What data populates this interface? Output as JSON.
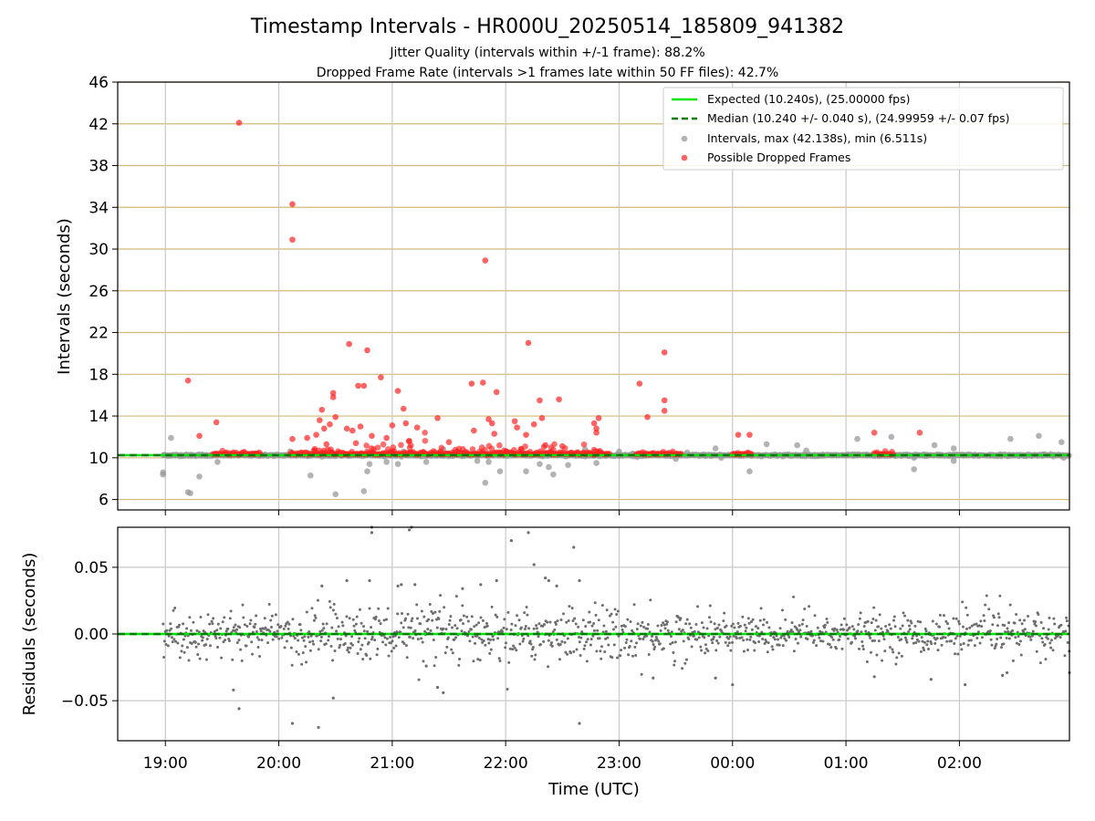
{
  "title": "Timestamp Intervals - HR000U_20250514_185809_941382",
  "subtitle_1": "Jitter Quality (intervals within +/-1 frame): 88.2%",
  "subtitle_2": "Dropped Frame Rate (intervals >1 frames late within 50 FF files): 42.7%",
  "colors": {
    "expected": "#00e600",
    "median": "#007a00",
    "intervals": "#9a9a9a",
    "dropped": "#ff2222",
    "residual_points": "#6e6e6e",
    "hgrid_top": "#d2b976",
    "grid": "#c8c8c8"
  },
  "chart_data": [
    {
      "type": "scatter",
      "ylabel": "Intervals (seconds)",
      "ylim": [
        5,
        46
      ],
      "y_ticks": [
        "6",
        "10",
        "14",
        "18",
        "22",
        "26",
        "30",
        "34",
        "38",
        "42",
        "46"
      ],
      "grid": true,
      "legend_position": "top-right",
      "legend": [
        "Expected (10.240s), (25.00000 fps)",
        "Median (10.240 +/- 0.040 s), (24.99959 +/- 0.07 fps)",
        "Intervals, max (42.138s), min (6.511s)",
        "Possible Dropped Frames"
      ],
      "expected_interval": 10.24,
      "median_interval": 10.24,
      "intervals_gray": [
        [
          18.98,
          8.4
        ],
        [
          18.98,
          8.6
        ],
        [
          19.05,
          11.9
        ],
        [
          19.2,
          6.7
        ],
        [
          19.22,
          6.6
        ],
        [
          19.3,
          8.2
        ],
        [
          19.46,
          9.6
        ],
        [
          19.6,
          10.4
        ],
        [
          20.1,
          10.6
        ],
        [
          20.28,
          8.3
        ],
        [
          20.5,
          6.5
        ],
        [
          20.75,
          6.8
        ],
        [
          20.78,
          8.7
        ],
        [
          20.8,
          9.4
        ],
        [
          20.95,
          9.6
        ],
        [
          21.05,
          9.4
        ],
        [
          21.1,
          10.6
        ],
        [
          21.3,
          9.6
        ],
        [
          21.45,
          10.8
        ],
        [
          21.75,
          9.7
        ],
        [
          21.82,
          7.6
        ],
        [
          21.85,
          9.6
        ],
        [
          21.95,
          8.7
        ],
        [
          22.15,
          10.5
        ],
        [
          22.18,
          8.7
        ],
        [
          22.3,
          9.4
        ],
        [
          22.38,
          9.1
        ],
        [
          22.42,
          8.4
        ],
        [
          22.55,
          9.3
        ],
        [
          22.7,
          10.8
        ],
        [
          22.8,
          9.5
        ],
        [
          23.0,
          10.6
        ],
        [
          23.12,
          10.4
        ],
        [
          23.5,
          9.9
        ],
        [
          23.6,
          10.5
        ],
        [
          23.85,
          10.9
        ],
        [
          23.9,
          10.0
        ],
        [
          24.15,
          8.7
        ],
        [
          24.3,
          11.3
        ],
        [
          24.57,
          11.2
        ],
        [
          24.65,
          10.7
        ],
        [
          25.1,
          11.8
        ],
        [
          25.4,
          12.0
        ],
        [
          25.6,
          10.0
        ],
        [
          25.6,
          8.9
        ],
        [
          25.78,
          11.2
        ],
        [
          25.95,
          10.9
        ],
        [
          25.95,
          9.7
        ],
        [
          26.45,
          11.8
        ],
        [
          26.7,
          12.1
        ],
        [
          26.9,
          11.5
        ],
        [
          26.92,
          10.0
        ]
      ],
      "dropped_frames": [
        [
          19.2,
          17.4
        ],
        [
          19.3,
          12.1
        ],
        [
          19.45,
          13.4
        ],
        [
          19.65,
          42.1
        ],
        [
          20.12,
          34.3
        ],
        [
          20.12,
          30.9
        ],
        [
          20.12,
          11.8
        ],
        [
          20.25,
          11.9
        ],
        [
          20.33,
          12.2
        ],
        [
          20.36,
          13.6
        ],
        [
          20.38,
          14.6
        ],
        [
          20.4,
          12.8
        ],
        [
          20.42,
          11.3
        ],
        [
          20.45,
          13.2
        ],
        [
          20.48,
          16.2
        ],
        [
          20.48,
          15.8
        ],
        [
          20.5,
          13.9
        ],
        [
          20.6,
          12.8
        ],
        [
          20.62,
          20.9
        ],
        [
          20.65,
          12.6
        ],
        [
          20.68,
          11.4
        ],
        [
          20.7,
          16.9
        ],
        [
          20.72,
          13.0
        ],
        [
          20.75,
          16.9
        ],
        [
          20.78,
          20.3
        ],
        [
          20.82,
          12.1
        ],
        [
          20.9,
          17.7
        ],
        [
          20.95,
          11.9
        ],
        [
          21.0,
          13.1
        ],
        [
          21.05,
          16.4
        ],
        [
          21.1,
          14.7
        ],
        [
          21.12,
          13.3
        ],
        [
          21.15,
          11.6
        ],
        [
          21.22,
          12.9
        ],
        [
          21.4,
          13.8
        ],
        [
          21.5,
          11.5
        ],
        [
          21.7,
          17.1
        ],
        [
          21.72,
          12.6
        ],
        [
          21.8,
          17.2
        ],
        [
          21.82,
          28.9
        ],
        [
          21.85,
          13.7
        ],
        [
          21.88,
          13.3
        ],
        [
          21.9,
          12.3
        ],
        [
          21.92,
          16.3
        ],
        [
          22.08,
          13.5
        ],
        [
          22.1,
          12.9
        ],
        [
          22.18,
          12.2
        ],
        [
          22.2,
          21.0
        ],
        [
          22.25,
          13.2
        ],
        [
          22.3,
          15.5
        ],
        [
          22.32,
          13.8
        ],
        [
          22.35,
          11.2
        ],
        [
          22.47,
          15.6
        ],
        [
          22.5,
          11.1
        ],
        [
          22.78,
          13.3
        ],
        [
          22.8,
          12.8
        ],
        [
          22.82,
          13.8
        ],
        [
          22.8,
          12.4
        ],
        [
          23.18,
          17.1
        ],
        [
          23.25,
          13.9
        ],
        [
          23.4,
          20.1
        ],
        [
          23.4,
          15.5
        ],
        [
          23.4,
          14.5
        ],
        [
          24.05,
          12.2
        ],
        [
          24.15,
          12.2
        ],
        [
          25.25,
          12.4
        ],
        [
          25.65,
          12.4
        ]
      ],
      "dense_dropped_clusters": [
        [
          19.42,
          19.85
        ],
        [
          20.1,
          20.3
        ],
        [
          20.32,
          22.65
        ],
        [
          22.65,
          22.92
        ],
        [
          23.15,
          23.55
        ],
        [
          24.0,
          24.18
        ],
        [
          25.25,
          25.42
        ]
      ]
    },
    {
      "type": "scatter",
      "ylabel": "Residuals (seconds)",
      "xlabel": "Time (UTC)",
      "ylim": [
        -0.08,
        0.08
      ],
      "y_ticks": [
        "−0.05",
        "0.00",
        "0.05"
      ],
      "y_tick_values": [
        -0.05,
        0,
        0.05
      ],
      "x_ticks": [
        "19:00",
        "20:00",
        "21:00",
        "22:00",
        "23:00",
        "00:00",
        "01:00",
        "02:00"
      ],
      "x_tick_values": [
        19,
        20,
        21,
        22,
        23,
        24,
        25,
        26
      ],
      "xlim": [
        18.58,
        26.97
      ],
      "outliers": [
        [
          19.6,
          -0.042
        ],
        [
          19.65,
          -0.056
        ],
        [
          20.12,
          -0.067
        ],
        [
          20.35,
          -0.07
        ],
        [
          20.48,
          -0.048
        ],
        [
          20.38,
          0.036
        ],
        [
          20.6,
          0.04
        ],
        [
          20.82,
          0.08
        ],
        [
          20.82,
          0.076
        ],
        [
          20.8,
          0.04
        ],
        [
          21.05,
          0.036
        ],
        [
          21.08,
          0.037
        ],
        [
          21.15,
          0.078
        ],
        [
          21.17,
          0.08
        ],
        [
          21.2,
          0.037
        ],
        [
          21.3,
          -0.024
        ],
        [
          21.4,
          -0.04
        ],
        [
          21.45,
          -0.044
        ],
        [
          21.62,
          0.034
        ],
        [
          21.78,
          0.037
        ],
        [
          21.92,
          0.04
        ],
        [
          22.05,
          0.07
        ],
        [
          22.2,
          0.076
        ],
        [
          22.25,
          0.052
        ],
        [
          22.35,
          0.042
        ],
        [
          22.38,
          0.04
        ],
        [
          22.45,
          0.036
        ],
        [
          22.6,
          0.065
        ],
        [
          22.65,
          0.04
        ],
        [
          22.65,
          -0.067
        ],
        [
          23.3,
          -0.033
        ],
        [
          23.85,
          -0.033
        ],
        [
          24.0,
          -0.038
        ],
        [
          25.25,
          -0.032
        ],
        [
          25.75,
          -0.034
        ],
        [
          26.05,
          -0.038
        ],
        [
          26.38,
          -0.031
        ],
        [
          26.42,
          -0.029
        ],
        [
          26.97,
          -0.029
        ]
      ]
    }
  ]
}
